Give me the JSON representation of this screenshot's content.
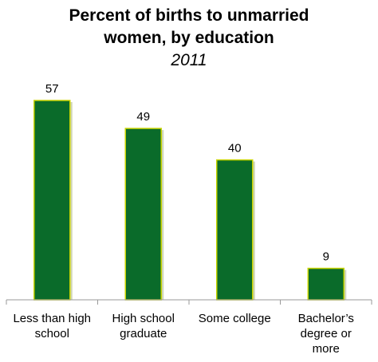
{
  "chart_data": {
    "type": "bar",
    "title_lines": [
      "Percent of births to unmarried",
      "women, by education"
    ],
    "subtitle": "2011",
    "categories": [
      [
        "Less than high",
        "school"
      ],
      [
        "High school",
        "graduate"
      ],
      [
        "Some college"
      ],
      [
        "Bachelor’s",
        "degree or",
        "more"
      ]
    ],
    "values": [
      57,
      49,
      40,
      9
    ],
    "value_labels": [
      "57",
      "49",
      "40",
      "9"
    ],
    "xlabel": "",
    "ylabel": "",
    "ylim": [
      0,
      65
    ],
    "grid": false,
    "legend": "none",
    "colors": {
      "bar_fill": "#0a6b2a",
      "bar_edge": "#c8d400",
      "axis": "#999999"
    }
  }
}
